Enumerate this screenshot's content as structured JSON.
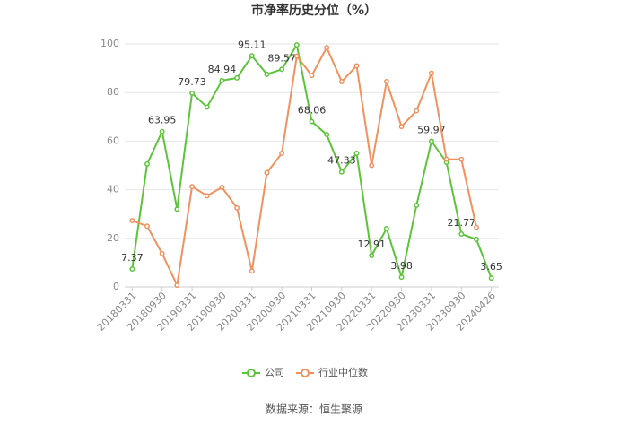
{
  "chart_data": {
    "type": "line",
    "title": "市净率历史分位（%）",
    "categories": [
      "20180331",
      null,
      "20180930",
      null,
      "20190331",
      null,
      "20190930",
      null,
      "20200331",
      null,
      "20200930",
      null,
      "20210331",
      null,
      "20210930",
      null,
      "20220331",
      null,
      "20220930",
      null,
      "20230331",
      null,
      "20230930",
      null,
      "20240426"
    ],
    "series": [
      {
        "name": "公司",
        "color": "#5cc43a",
        "values": [
          7.37,
          50.6,
          63.95,
          32,
          79.73,
          74,
          84.94,
          86,
          95.11,
          87.5,
          89.57,
          99.6,
          68.06,
          62.7,
          47.33,
          55,
          12.91,
          24,
          3.98,
          33.6,
          59.97,
          51.3,
          21.77,
          19.6,
          3.65
        ],
        "value_labels": [
          "7.37",
          null,
          "63.95",
          null,
          "79.73",
          null,
          "84.94",
          null,
          "95.11",
          null,
          "89.57",
          null,
          "68.06",
          null,
          "47.33",
          null,
          "12.91",
          null,
          "3.98",
          null,
          "59.97",
          null,
          "21.77",
          null,
          "3.65"
        ]
      },
      {
        "name": "行业中位数",
        "color": "#f0915e",
        "values": [
          27.3,
          25,
          13.7,
          0.7,
          41.3,
          37.5,
          41,
          32.5,
          6.5,
          47,
          55,
          95,
          87,
          98.5,
          84.5,
          91,
          50,
          84.5,
          66,
          72.5,
          88,
          52.5,
          52.5,
          24.5,
          null
        ]
      }
    ],
    "ylim": [
      0,
      100
    ],
    "yticks": [
      0,
      20,
      40,
      60,
      80,
      100
    ],
    "grid": true,
    "legend": "bottom",
    "source": "数据来源：恒生聚源"
  }
}
